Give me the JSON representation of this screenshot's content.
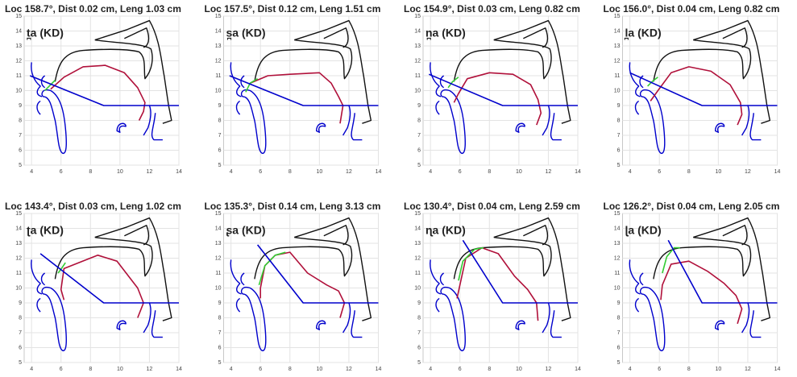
{
  "chart_data": [
    {
      "type": "line",
      "title": "Loc 158.7°, Dist  0.02 cm, Leng  1.03 cm",
      "annotation": "t̪a (KD)",
      "xlim": [
        3.5,
        14
      ],
      "ylim": [
        5,
        15
      ],
      "xticks": [
        4,
        6,
        8,
        10,
        12,
        14
      ],
      "yticks": [
        5,
        6,
        7,
        8,
        9,
        10,
        11,
        12,
        13,
        14,
        15
      ],
      "grid": true,
      "series": [
        {
          "color": "#b0103a",
          "x": [
            5.3,
            6.2,
            7.5,
            9,
            10.3,
            11.2,
            11.7,
            11.6,
            11.3
          ],
          "values": [
            10.1,
            10.9,
            11.6,
            11.7,
            11.2,
            10.2,
            9.2,
            8.6,
            8
          ]
        },
        {
          "color": "#33cc33",
          "x": [
            4.9,
            5.3,
            5.6
          ],
          "values": [
            10,
            10.4,
            10.7
          ]
        },
        {
          "color": "#0000cc",
          "x": [
            3.9,
            8.9,
            14
          ],
          "values": [
            11,
            9,
            9
          ]
        }
      ]
    },
    {
      "type": "line",
      "title": "Loc 157.5°, Dist  0.12 cm, Leng  1.51 cm",
      "annotation": "s̪a (KD)",
      "xlim": [
        3.5,
        14
      ],
      "ylim": [
        5,
        15
      ],
      "xticks": [
        4,
        6,
        8,
        10,
        12,
        14
      ],
      "yticks": [
        5,
        6,
        7,
        8,
        9,
        10,
        11,
        12,
        13,
        14,
        15
      ],
      "grid": true,
      "series": [
        {
          "color": "#b0103a",
          "x": [
            5.3,
            6.5,
            8,
            10,
            10.8,
            11.3,
            11.6,
            11.4
          ],
          "values": [
            10.5,
            11,
            11.1,
            11.2,
            10.5,
            9.6,
            9,
            7.8
          ]
        },
        {
          "color": "#33cc33",
          "x": [
            5,
            5.3,
            5.8
          ],
          "values": [
            9.9,
            10.5,
            10.8
          ]
        },
        {
          "color": "#0000cc",
          "x": [
            3.9,
            8.9,
            14
          ],
          "values": [
            11,
            9,
            9
          ]
        }
      ]
    },
    {
      "type": "line",
      "title": "Loc 154.9°, Dist  0.03 cm, Leng  0.82 cm",
      "annotation": "n̪a (KD)",
      "xlim": [
        3.5,
        14
      ],
      "ylim": [
        5,
        15
      ],
      "xticks": [
        4,
        6,
        8,
        10,
        12,
        14
      ],
      "yticks": [
        5,
        6,
        7,
        8,
        9,
        10,
        11,
        12,
        13,
        14,
        15
      ],
      "grid": true,
      "series": [
        {
          "color": "#b0103a",
          "x": [
            5.6,
            5.9,
            6.5,
            8,
            9.6,
            10.8,
            11.3,
            11.5,
            11.2
          ],
          "values": [
            9.2,
            9.8,
            10.8,
            11.2,
            11.1,
            10.4,
            9.4,
            8.5,
            7.7
          ]
        },
        {
          "color": "#33cc33",
          "x": [
            5.2,
            5.5,
            5.9
          ],
          "values": [
            10.2,
            10.6,
            10.9
          ]
        },
        {
          "color": "#0000cc",
          "x": [
            3.9,
            8.9,
            14
          ],
          "values": [
            11.1,
            9,
            9
          ]
        }
      ]
    },
    {
      "type": "line",
      "title": "Loc 156.0°, Dist  0.04 cm, Leng  0.82 cm",
      "annotation": "l̪a (KD)",
      "xlim": [
        3.5,
        14
      ],
      "ylim": [
        5,
        15
      ],
      "xticks": [
        4,
        6,
        8,
        10,
        12,
        14
      ],
      "yticks": [
        5,
        6,
        7,
        8,
        9,
        10,
        11,
        12,
        13,
        14,
        15
      ],
      "grid": true,
      "series": [
        {
          "color": "#b0103a",
          "x": [
            5.4,
            5.9,
            6.8,
            8,
            9.5,
            10.8,
            11.5,
            11.6,
            11.3
          ],
          "values": [
            9.3,
            10,
            11.2,
            11.6,
            11.3,
            10.4,
            9.2,
            8.4,
            7.7
          ]
        },
        {
          "color": "#33cc33",
          "x": [
            5.2,
            5.5,
            5.9
          ],
          "values": [
            10.3,
            10.6,
            10.9
          ]
        },
        {
          "color": "#0000cc",
          "x": [
            4,
            8.9,
            14
          ],
          "values": [
            11.2,
            9,
            9
          ]
        }
      ]
    },
    {
      "type": "line",
      "title": "Loc 143.4°, Dist  0.03 cm, Leng  1.02 cm",
      "annotation": "ʈa (KD)",
      "xlim": [
        3.5,
        14
      ],
      "ylim": [
        5,
        15
      ],
      "xticks": [
        4,
        6,
        8,
        10,
        12,
        14
      ],
      "yticks": [
        5,
        6,
        7,
        8,
        9,
        10,
        11,
        12,
        13,
        14,
        15
      ],
      "grid": true,
      "series": [
        {
          "color": "#b0103a",
          "x": [
            6.2,
            6,
            6.2,
            7.2,
            8.5,
            9.8,
            11.2,
            11.6,
            11.2
          ],
          "values": [
            9.2,
            9.9,
            11.3,
            11.7,
            12.2,
            11.8,
            10,
            9,
            8
          ]
        },
        {
          "color": "#33cc33",
          "x": [
            5.8,
            6.1,
            6.3
          ],
          "values": [
            11,
            11.4,
            11.7
          ]
        },
        {
          "color": "#0000cc",
          "x": [
            4.6,
            8.9,
            14
          ],
          "values": [
            12.3,
            9,
            9
          ]
        }
      ]
    },
    {
      "type": "line",
      "title": "Loc 135.3°, Dist  0.14 cm, Leng  3.13 cm",
      "annotation": "ʂa (KD)",
      "xlim": [
        3.5,
        14
      ],
      "ylim": [
        5,
        15
      ],
      "xticks": [
        4,
        6,
        8,
        10,
        12,
        14
      ],
      "yticks": [
        5,
        6,
        7,
        8,
        9,
        10,
        11,
        12,
        13,
        14,
        15
      ],
      "grid": true,
      "series": [
        {
          "color": "#b0103a",
          "x": [
            6,
            6,
            6.3,
            7,
            8,
            9.2,
            10.5,
            11.3,
            11.7,
            11.4
          ],
          "values": [
            9.3,
            10,
            11.5,
            12.2,
            12.4,
            11,
            10.2,
            9.8,
            9,
            8
          ]
        },
        {
          "color": "#33cc33",
          "x": [
            5.9,
            6.3,
            7,
            7.7
          ],
          "values": [
            10.2,
            11.5,
            12.2,
            12.4
          ]
        },
        {
          "color": "#0000cc",
          "x": [
            5.8,
            8.9,
            14
          ],
          "values": [
            12.9,
            9,
            9
          ]
        }
      ]
    },
    {
      "type": "line",
      "title": "Loc 130.4°, Dist  0.04 cm, Leng  2.59 cm",
      "annotation": "ɳa (KD)",
      "xlim": [
        3.5,
        14
      ],
      "ylim": [
        5,
        15
      ],
      "xticks": [
        4,
        6,
        8,
        10,
        12,
        14
      ],
      "yticks": [
        5,
        6,
        7,
        8,
        9,
        10,
        11,
        12,
        13,
        14,
        15
      ],
      "grid": true,
      "series": [
        {
          "color": "#b0103a",
          "x": [
            5.8,
            6,
            6.4,
            7.5,
            8.6,
            9.7,
            10.6,
            11.2,
            11.3
          ],
          "values": [
            9.3,
            10.2,
            12,
            12.7,
            12.3,
            10.8,
            9.9,
            9,
            7.8
          ]
        },
        {
          "color": "#33cc33",
          "x": [
            5.9,
            6.2,
            7,
            7.6
          ],
          "values": [
            10.5,
            11.8,
            12.6,
            12.7
          ]
        },
        {
          "color": "#0000cc",
          "x": [
            6.2,
            8.9,
            14
          ],
          "values": [
            13.2,
            9,
            9
          ]
        }
      ]
    },
    {
      "type": "line",
      "title": "Loc 126.2°, Dist  0.04 cm, Leng  2.05 cm",
      "annotation": "ɭa (KD)",
      "xlim": [
        3.5,
        14
      ],
      "ylim": [
        5,
        15
      ],
      "xticks": [
        4,
        6,
        8,
        10,
        12,
        14
      ],
      "yticks": [
        5,
        6,
        7,
        8,
        9,
        10,
        11,
        12,
        13,
        14,
        15
      ],
      "grid": true,
      "series": [
        {
          "color": "#b0103a",
          "x": [
            6.1,
            6.2,
            6.8,
            8,
            9.3,
            10.4,
            11.2,
            11.6,
            11.3
          ],
          "values": [
            9.2,
            10.2,
            11.6,
            11.8,
            11.1,
            10.3,
            9.5,
            8.6,
            7.6
          ]
        },
        {
          "color": "#33cc33",
          "x": [
            6.2,
            6.5,
            7,
            7.4
          ],
          "values": [
            11,
            12.1,
            12.7,
            12.7
          ]
        },
        {
          "color": "#0000cc",
          "x": [
            6.6,
            8.9,
            14
          ],
          "values": [
            13.2,
            9,
            9
          ]
        }
      ]
    }
  ]
}
